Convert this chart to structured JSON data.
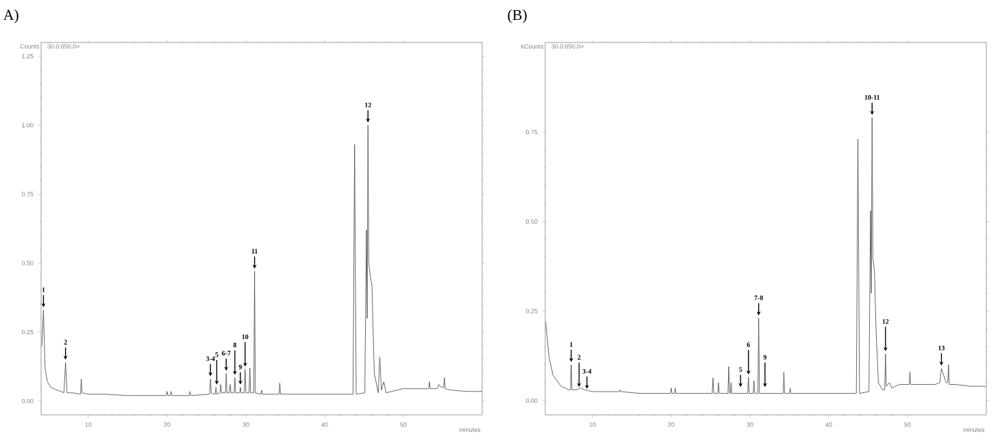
{
  "chart_data": [
    {
      "type": "line",
      "title": "A)",
      "xlabel": "minutes",
      "ylabel": "Counts",
      "marker": "none",
      "line_style": "solid",
      "xlim": [
        4,
        60
      ],
      "ylim": [
        -0.05,
        1.3
      ],
      "xticks": [
        10,
        20,
        30,
        40,
        50
      ],
      "yticks": [
        {
          "value": 0,
          "label": "0.00"
        },
        {
          "value": 0.25,
          "label": "0.25"
        },
        {
          "value": 0.5,
          "label": "0.50"
        },
        {
          "value": 0.75,
          "label": "0.75"
        },
        {
          "value": 1,
          "label": "1.00"
        },
        {
          "value": 1.25,
          "label": "1.25"
        }
      ],
      "annotations": [
        "30.0:650.0>",
        {
          "text": "1",
          "x": 4.3,
          "y": 0.33
        },
        {
          "text": "2",
          "x": 7.1,
          "y": 0.14
        },
        {
          "text": "3-4",
          "x": 25.5,
          "y": 0.08
        },
        {
          "text": "5",
          "x": 26.3,
          "y": 0.05
        },
        {
          "text": "6-7",
          "x": 27.5,
          "y": 0.1
        },
        {
          "text": "8",
          "x": 28.6,
          "y": 0.085
        },
        {
          "text": "9",
          "x": 29.3,
          "y": 0.05
        },
        {
          "text": "10",
          "x": 29.9,
          "y": 0.115
        },
        {
          "text": "11",
          "x": 31.1,
          "y": 0.47
        },
        {
          "text": "12",
          "x": 45.5,
          "y": 1.0
        }
      ],
      "series": [
        {
          "color": "#555555",
          "x": [
            4.1,
            4.3,
            4.5,
            4.8,
            5.2,
            6,
            6.5,
            6.9,
            7.1,
            7.3,
            8,
            9.0,
            9.1,
            9.2,
            10,
            12,
            15,
            19.9,
            20,
            20.1,
            20.4,
            20.5,
            20.6,
            22.8,
            22.9,
            23,
            25.4,
            25.5,
            25.6,
            26.1,
            26.2,
            26.3,
            26.7,
            26.8,
            26.9,
            27.4,
            27.5,
            27.6,
            27.9,
            28,
            28.1,
            28.5,
            28.6,
            28.7,
            29.2,
            29.3,
            29.4,
            29.8,
            29.9,
            30.0,
            30.4,
            30.5,
            30.6,
            31.0,
            31.1,
            31.2,
            31.9,
            32.0,
            32.1,
            34.2,
            34.3,
            34.4,
            38,
            43.6,
            43.8,
            44.0,
            45.1,
            45.3,
            45.4,
            45.5,
            45.6,
            45.8,
            46.0,
            46.3,
            46.8,
            47.0,
            47.2,
            47.5,
            47.8,
            48.5,
            50,
            53.2,
            53.3,
            53.4,
            54.3,
            54.5,
            54.8,
            55.1,
            55.2,
            55.3,
            56,
            58,
            60
          ],
          "values": [
            0.2,
            0.33,
            0.12,
            0.07,
            0.05,
            0.04,
            0.035,
            0.03,
            0.14,
            0.03,
            0.03,
            0.025,
            0.08,
            0.03,
            0.025,
            0.025,
            0.02,
            0.02,
            0.035,
            0.02,
            0.02,
            0.035,
            0.02,
            0.02,
            0.035,
            0.02,
            0.025,
            0.08,
            0.03,
            0.025,
            0.05,
            0.025,
            0.03,
            0.06,
            0.03,
            0.03,
            0.1,
            0.03,
            0.03,
            0.06,
            0.03,
            0.03,
            0.085,
            0.03,
            0.03,
            0.05,
            0.03,
            0.03,
            0.115,
            0.03,
            0.03,
            0.12,
            0.03,
            0.03,
            0.47,
            0.03,
            0.025,
            0.04,
            0.025,
            0.025,
            0.065,
            0.025,
            0.025,
            0.025,
            0.93,
            0.025,
            0.03,
            0.62,
            0.3,
            1.0,
            0.5,
            0.45,
            0.42,
            0.1,
            0.03,
            0.16,
            0.04,
            0.07,
            0.03,
            0.035,
            0.045,
            0.045,
            0.07,
            0.045,
            0.045,
            0.06,
            0.05,
            0.05,
            0.085,
            0.045,
            0.04,
            0.035,
            0.035
          ]
        }
      ]
    },
    {
      "type": "line",
      "title": "(B)",
      "xlabel": "minutes",
      "ylabel": "kCounts",
      "marker": "none",
      "line_style": "solid",
      "xlim": [
        4,
        60
      ],
      "ylim": [
        -0.04,
        1.0
      ],
      "xticks": [
        10,
        20,
        30,
        40,
        50
      ],
      "yticks": [
        {
          "value": 0,
          "label": "0.00"
        },
        {
          "value": 0.25,
          "label": "0.25"
        },
        {
          "value": 0.5,
          "label": "0.50"
        },
        {
          "value": 0.75,
          "label": "0.75"
        }
      ],
      "annotations": [
        "30.0:650.0>",
        {
          "text": "1",
          "x": 7.3,
          "y": 0.1
        },
        {
          "text": "2",
          "x": 8.3,
          "y": 0.03
        },
        {
          "text": "3-4",
          "x": 9.3,
          "y": 0.025
        },
        {
          "text": "5",
          "x": 28.8,
          "y": 0.03
        },
        {
          "text": "6",
          "x": 29.8,
          "y": 0.065
        },
        {
          "text": "7-8",
          "x": 31.1,
          "y": 0.23
        },
        {
          "text": "9",
          "x": 31.9,
          "y": 0.03
        },
        {
          "text": "10-11",
          "x": 45.5,
          "y": 0.79
        },
        {
          "text": "12",
          "x": 47.2,
          "y": 0.13
        },
        {
          "text": "13",
          "x": 54.3,
          "y": 0.09
        }
      ],
      "series": [
        {
          "color": "#555555",
          "x": [
            4.05,
            4.5,
            5,
            6,
            7,
            7.2,
            7.3,
            7.4,
            8,
            8.5,
            9,
            10,
            13.4,
            13.5,
            13.6,
            16,
            19.9,
            20,
            20.1,
            20.4,
            20.5,
            20.6,
            24,
            25.2,
            25.3,
            25.4,
            25.9,
            26,
            26.1,
            27.2,
            27.3,
            27.4,
            27.5,
            27.6,
            27.7,
            29.7,
            29.8,
            29.9,
            30.4,
            30.5,
            30.6,
            31.0,
            31.1,
            31.2,
            34.2,
            34.3,
            34.4,
            35,
            35.1,
            35.2,
            40,
            43.5,
            43.7,
            43.9,
            45.1,
            45.3,
            45.4,
            45.5,
            45.6,
            45.8,
            46.0,
            46.3,
            46.8,
            47.1,
            47.2,
            47.3,
            47.7,
            48,
            49,
            50.2,
            50.3,
            50.4,
            53.5,
            54.1,
            54.3,
            54.6,
            54.9,
            55.1,
            55.2,
            55.3,
            56,
            58,
            59.9
          ],
          "values": [
            0.22,
            0.12,
            0.07,
            0.04,
            0.03,
            0.03,
            0.1,
            0.03,
            0.03,
            0.035,
            0.03,
            0.025,
            0.025,
            0.03,
            0.025,
            0.02,
            0.02,
            0.035,
            0.02,
            0.02,
            0.035,
            0.02,
            0.02,
            0.02,
            0.063,
            0.02,
            0.02,
            0.05,
            0.02,
            0.02,
            0.095,
            0.02,
            0.02,
            0.05,
            0.02,
            0.02,
            0.065,
            0.02,
            0.02,
            0.055,
            0.02,
            0.02,
            0.23,
            0.02,
            0.02,
            0.08,
            0.02,
            0.02,
            0.035,
            0.02,
            0.02,
            0.02,
            0.73,
            0.02,
            0.025,
            0.53,
            0.3,
            0.79,
            0.4,
            0.36,
            0.2,
            0.05,
            0.03,
            0.03,
            0.13,
            0.04,
            0.05,
            0.035,
            0.045,
            0.045,
            0.08,
            0.045,
            0.045,
            0.05,
            0.09,
            0.07,
            0.05,
            0.05,
            0.1,
            0.045,
            0.045,
            0.04,
            0.04
          ]
        }
      ]
    }
  ]
}
